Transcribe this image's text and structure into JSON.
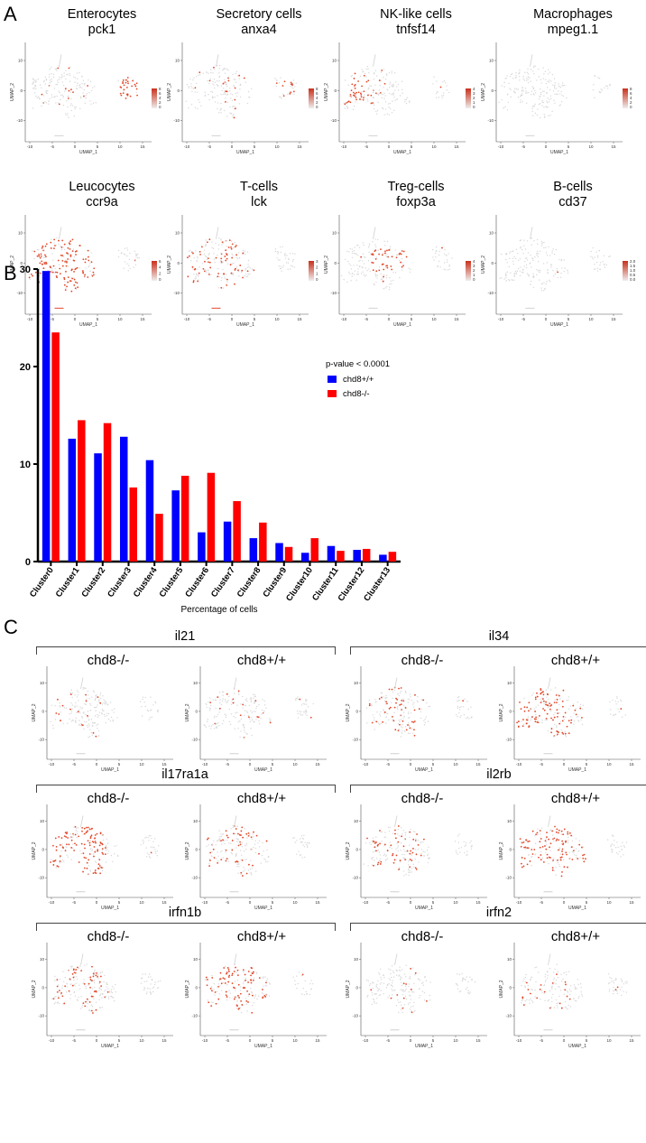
{
  "panels": {
    "a": "A",
    "b": "B",
    "c": "C"
  },
  "panel_a": {
    "axis": {
      "x": "UMAP_1",
      "y": "UMAP_2",
      "xticks": [
        "-10",
        "-5",
        "0",
        "5",
        "10",
        "15"
      ],
      "yticks": [
        "10",
        "0",
        "-10"
      ]
    },
    "plots": [
      {
        "cell": "Enterocytes",
        "gene": "pck1",
        "legend": [
          "8",
          "6",
          "4",
          "2",
          "0"
        ],
        "pattern": "enterocyte"
      },
      {
        "cell": "Secretory cells",
        "gene": "anxa4",
        "legend": [
          "8",
          "6",
          "4",
          "2",
          "0"
        ],
        "pattern": "secretory"
      },
      {
        "cell": "NK-like cells",
        "gene": "tnfsf14",
        "legend": [
          "4",
          "3",
          "2",
          "1",
          "0"
        ],
        "pattern": "nk"
      },
      {
        "cell": "Macrophages",
        "gene": "mpeg1.1",
        "legend": [
          "8",
          "6",
          "4",
          "2",
          "0"
        ],
        "pattern": "macro"
      },
      {
        "cell": "Leucocytes",
        "gene": "ccr9a",
        "legend": [
          "6",
          "4",
          "2",
          "0"
        ],
        "pattern": "leuco"
      },
      {
        "cell": "T-cells",
        "gene": "lck",
        "legend": [
          "3",
          "2",
          "1",
          "0"
        ],
        "pattern": "tcell"
      },
      {
        "cell": "Treg-cells",
        "gene": "foxp3a",
        "legend": [
          "4",
          "3",
          "2",
          "1",
          "0"
        ],
        "pattern": "treg"
      },
      {
        "cell": "B-cells",
        "gene": "cd37",
        "legend": [
          "2.0",
          "1.5",
          "1.0",
          "0.5",
          "0.0"
        ],
        "pattern": "bcell"
      }
    ]
  },
  "chart_data": {
    "type": "bar",
    "xlabel": "Percentage of cells",
    "ylim": [
      0,
      30
    ],
    "yticks": [
      "0",
      "10",
      "20",
      "30"
    ],
    "annotation": "p-value < 0.0001",
    "categories": [
      "Cluster0",
      "Cluster1",
      "Cluster2",
      "Cluster3",
      "Cluster4",
      "Cluster5",
      "Cluster6",
      "Cluster7",
      "Cluster8",
      "Cluster9",
      "Cluster10",
      "Cluster11",
      "Cluster12",
      "Cluster13"
    ],
    "series": [
      {
        "name": "chd8+/+",
        "color": "#0000ff",
        "values": [
          29.8,
          12.6,
          11.1,
          12.8,
          10.4,
          7.3,
          3.0,
          4.1,
          2.4,
          1.9,
          0.9,
          1.6,
          1.2,
          0.7
        ]
      },
      {
        "name": "chd8-/-",
        "color": "#ff0000",
        "values": [
          23.5,
          14.5,
          14.2,
          7.6,
          4.9,
          8.8,
          9.1,
          6.2,
          4.0,
          1.5,
          2.4,
          1.1,
          1.3,
          1.0
        ]
      }
    ],
    "legend_position": "right"
  },
  "panel_c": {
    "conditions": {
      "ko": "chd8-/-",
      "wt": "chd8+/+"
    },
    "axis": {
      "x": "UMAP_1",
      "y": "UMAP_2"
    },
    "genes": [
      {
        "name": "il21",
        "ko": "sparse",
        "wt": "sparse"
      },
      {
        "name": "il34",
        "ko": "medium",
        "wt": "dense"
      },
      {
        "name": "il17ra1a",
        "ko": "dense",
        "wt": "medium"
      },
      {
        "name": "il2rb",
        "ko": "medium",
        "wt": "dense"
      },
      {
        "name": "irfn1b",
        "ko": "medium",
        "wt": "dense"
      },
      {
        "name": "irfn2",
        "ko": "sparse",
        "wt": "sparse"
      }
    ]
  }
}
